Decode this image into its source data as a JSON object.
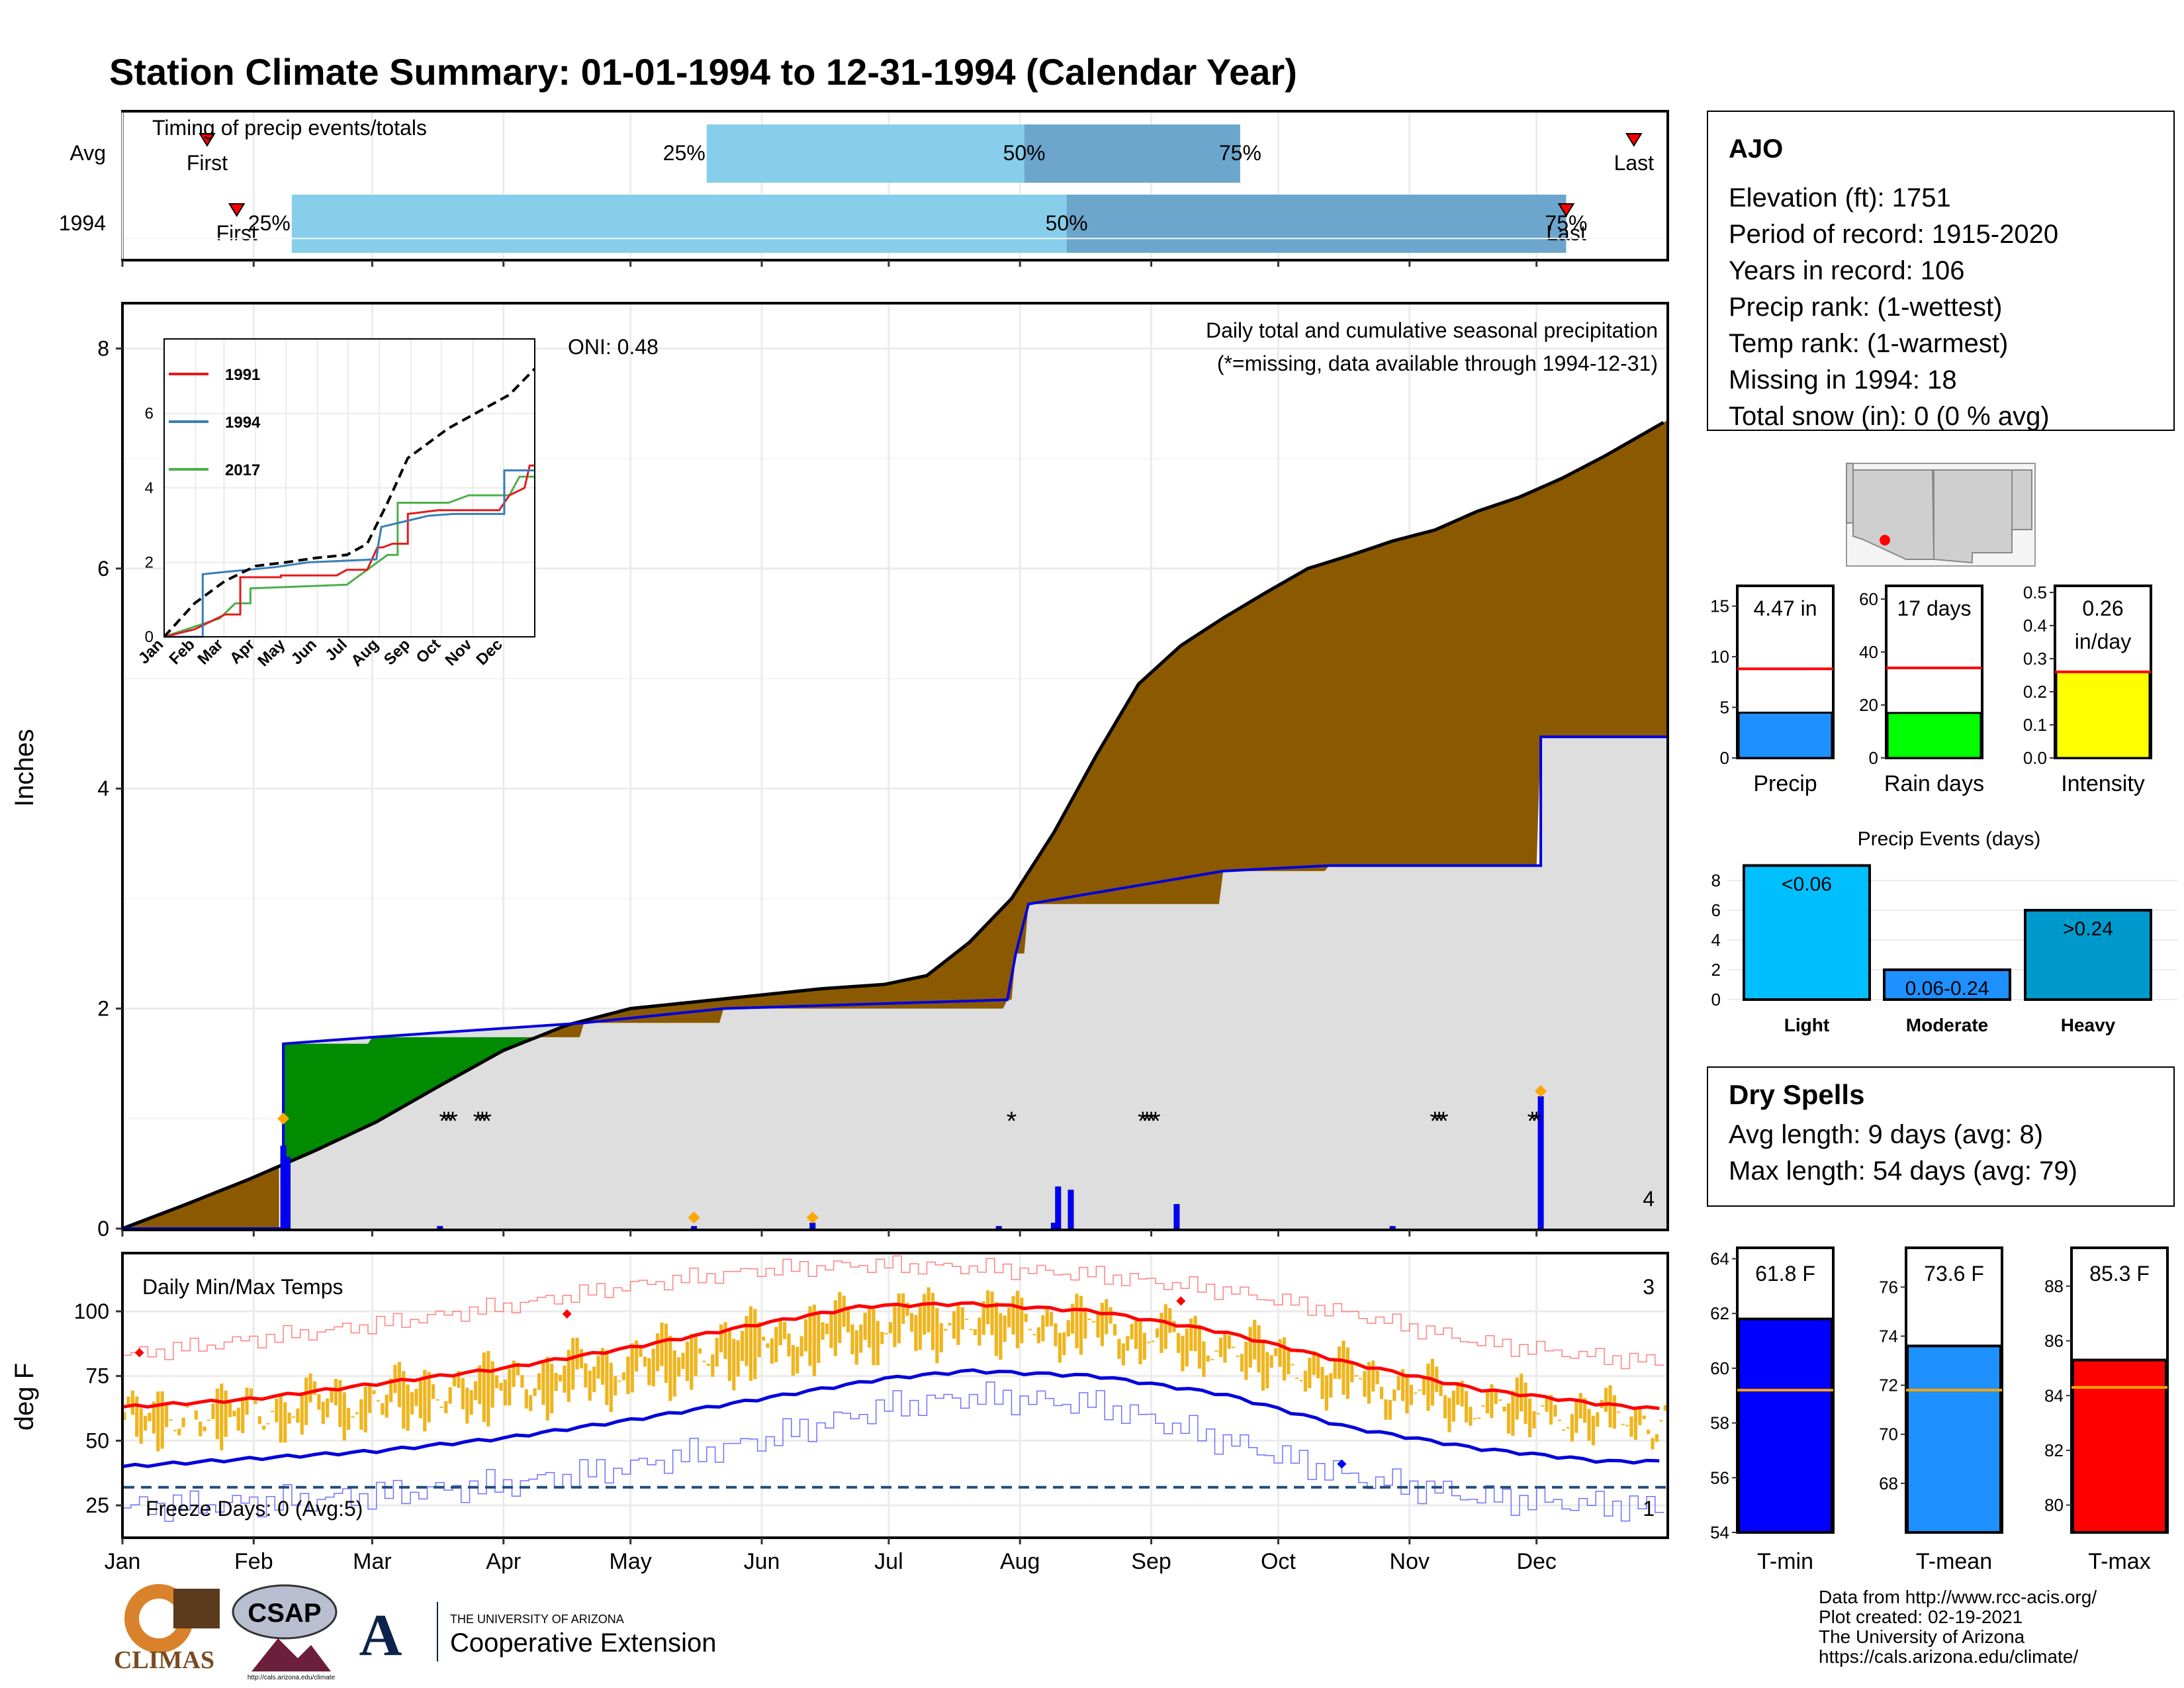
{
  "title": "Station Climate Summary: 01-01-1994 to 12-31-1994 (Calendar Year)",
  "months": [
    "Jan",
    "Feb",
    "Mar",
    "Apr",
    "May",
    "Jun",
    "Jul",
    "Aug",
    "Sep",
    "Oct",
    "Nov",
    "Dec"
  ],
  "timing": {
    "title": "Timing of precip events/totals",
    "rows": [
      {
        "label": "Avg",
        "first_day": 20,
        "last_day": 357,
        "p25_day": 138,
        "p50_day": 213,
        "p75_day": 264
      },
      {
        "label": "1994",
        "first_day": 27,
        "last_day": 341,
        "p25_day": 40,
        "p50_day": 223,
        "p75_day": 341
      }
    ],
    "first_label": "First",
    "last_label": "Last",
    "p25_label": "25%",
    "p50_label": "50%",
    "p75_label": "75%"
  },
  "precip": {
    "ylabel": "Inches",
    "note": "Daily total and cumulative seasonal precipitation",
    "missing_note": "(*=missing, data available through 1994-12-31)",
    "oni": "ONI: 0.48",
    "count": "4",
    "ylim": [
      0,
      8.4
    ],
    "yticks": [
      0,
      2,
      4,
      6,
      8
    ],
    "avg_cum": [
      [
        0,
        0
      ],
      [
        15,
        0.22
      ],
      [
        30,
        0.45
      ],
      [
        45,
        0.7
      ],
      [
        60,
        0.97
      ],
      [
        75,
        1.3
      ],
      [
        90,
        1.62
      ],
      [
        105,
        1.85
      ],
      [
        120,
        2.0
      ],
      [
        135,
        2.06
      ],
      [
        150,
        2.12
      ],
      [
        165,
        2.18
      ],
      [
        180,
        2.22
      ],
      [
        190,
        2.3
      ],
      [
        200,
        2.6
      ],
      [
        210,
        3.0
      ],
      [
        220,
        3.6
      ],
      [
        230,
        4.3
      ],
      [
        240,
        4.95
      ],
      [
        250,
        5.3
      ],
      [
        260,
        5.55
      ],
      [
        270,
        5.78
      ],
      [
        280,
        6.0
      ],
      [
        290,
        6.12
      ],
      [
        300,
        6.25
      ],
      [
        310,
        6.35
      ],
      [
        320,
        6.52
      ],
      [
        330,
        6.65
      ],
      [
        340,
        6.82
      ],
      [
        350,
        7.02
      ],
      [
        365,
        7.35
      ]
    ],
    "year_cum": [
      [
        0,
        0
      ],
      [
        38,
        0
      ],
      [
        38,
        1.68
      ],
      [
        59,
        1.74
      ],
      [
        109,
        1.87
      ],
      [
        142,
        2.0
      ],
      [
        209,
        2.08
      ],
      [
        211,
        2.5
      ],
      [
        214,
        2.95
      ],
      [
        260,
        3.25
      ],
      [
        285,
        3.3
      ],
      [
        335,
        3.3
      ],
      [
        335,
        4.47
      ],
      [
        365,
        4.47
      ]
    ],
    "daily": [
      [
        38,
        0.75
      ],
      [
        39,
        0.65
      ],
      [
        75,
        0.02
      ],
      [
        135,
        0.02
      ],
      [
        163,
        0.05
      ],
      [
        207,
        0.02
      ],
      [
        220,
        0.05
      ],
      [
        221,
        0.38
      ],
      [
        224,
        0.35
      ],
      [
        249,
        0.22
      ],
      [
        300,
        0.02
      ],
      [
        335,
        1.2
      ]
    ],
    "event_dots": [
      [
        38,
        1.0
      ],
      [
        135,
        0.1
      ],
      [
        163,
        0.1
      ],
      [
        335,
        1.25
      ]
    ],
    "missing_days": [
      76,
      77,
      78,
      84,
      85,
      86,
      210,
      241,
      242,
      243,
      244,
      310,
      311,
      312,
      333,
      334
    ]
  },
  "inset": {
    "ylim": [
      0,
      8
    ],
    "yticks": [
      0,
      2,
      4,
      6
    ],
    "legend": [
      {
        "name": "1991",
        "color": "#e41a1c"
      },
      {
        "name": "1994",
        "color": "#377eb8"
      },
      {
        "name": "2017",
        "color": "#4daf4a"
      }
    ],
    "avg": [
      [
        0,
        0
      ],
      [
        30,
        0.9
      ],
      [
        60,
        1.5
      ],
      [
        90,
        1.9
      ],
      [
        120,
        2.0
      ],
      [
        150,
        2.12
      ],
      [
        180,
        2.2
      ],
      [
        200,
        2.5
      ],
      [
        220,
        3.6
      ],
      [
        240,
        4.8
      ],
      [
        260,
        5.2
      ],
      [
        280,
        5.6
      ],
      [
        300,
        5.9
      ],
      [
        320,
        6.2
      ],
      [
        340,
        6.5
      ],
      [
        365,
        7.2
      ]
    ],
    "s1991": [
      [
        0,
        0
      ],
      [
        30,
        0.2
      ],
      [
        60,
        0.6
      ],
      [
        75,
        0.6
      ],
      [
        75,
        1.6
      ],
      [
        115,
        1.6
      ],
      [
        115,
        1.65
      ],
      [
        170,
        1.65
      ],
      [
        180,
        1.8
      ],
      [
        200,
        1.8
      ],
      [
        210,
        2.4
      ],
      [
        215,
        2.4
      ],
      [
        225,
        2.5
      ],
      [
        240,
        2.5
      ],
      [
        240,
        3.3
      ],
      [
        270,
        3.4
      ],
      [
        330,
        3.4
      ],
      [
        340,
        3.8
      ],
      [
        355,
        4.0
      ],
      [
        360,
        4.6
      ],
      [
        365,
        4.6
      ]
    ],
    "s1994": [
      [
        0,
        0
      ],
      [
        38,
        0
      ],
      [
        38,
        1.68
      ],
      [
        59,
        1.74
      ],
      [
        109,
        1.87
      ],
      [
        142,
        2.0
      ],
      [
        209,
        2.08
      ],
      [
        211,
        2.5
      ],
      [
        214,
        2.95
      ],
      [
        260,
        3.25
      ],
      [
        285,
        3.3
      ],
      [
        335,
        3.3
      ],
      [
        335,
        4.47
      ],
      [
        365,
        4.47
      ]
    ],
    "s2017": [
      [
        0,
        0
      ],
      [
        55,
        0.5
      ],
      [
        70,
        0.9
      ],
      [
        85,
        0.9
      ],
      [
        85,
        1.3
      ],
      [
        180,
        1.4
      ],
      [
        200,
        1.8
      ],
      [
        220,
        2.2
      ],
      [
        230,
        2.2
      ],
      [
        230,
        3.6
      ],
      [
        280,
        3.6
      ],
      [
        300,
        3.8
      ],
      [
        340,
        3.8
      ],
      [
        350,
        4.3
      ],
      [
        365,
        4.3
      ]
    ]
  },
  "temps": {
    "title": "Daily Min/Max Temps",
    "ylabel": "deg F",
    "freeze_note": "Freeze Days: 0 (Avg:5)",
    "count_top": "3",
    "count_bottom": "1",
    "ylim": [
      13,
      122
    ],
    "yticks": [
      25,
      50,
      75,
      100
    ],
    "freeze_line": 32,
    "avg_max": [
      [
        0,
        63
      ],
      [
        30,
        66
      ],
      [
        60,
        72
      ],
      [
        90,
        78
      ],
      [
        120,
        86
      ],
      [
        150,
        95
      ],
      [
        175,
        102
      ],
      [
        200,
        103
      ],
      [
        230,
        100
      ],
      [
        260,
        92
      ],
      [
        290,
        80
      ],
      [
        320,
        70
      ],
      [
        350,
        64
      ],
      [
        365,
        62
      ]
    ],
    "avg_min": [
      [
        0,
        40
      ],
      [
        30,
        43
      ],
      [
        60,
        46
      ],
      [
        90,
        51
      ],
      [
        120,
        58
      ],
      [
        150,
        66
      ],
      [
        180,
        74
      ],
      [
        200,
        77
      ],
      [
        230,
        75
      ],
      [
        260,
        68
      ],
      [
        290,
        55
      ],
      [
        320,
        47
      ],
      [
        350,
        42
      ],
      [
        365,
        42
      ]
    ],
    "rec_max": [
      [
        0,
        83
      ],
      [
        30,
        89
      ],
      [
        60,
        95
      ],
      [
        90,
        102
      ],
      [
        120,
        110
      ],
      [
        150,
        116
      ],
      [
        175,
        118
      ],
      [
        200,
        117
      ],
      [
        230,
        114
      ],
      [
        260,
        108
      ],
      [
        290,
        99
      ],
      [
        320,
        88
      ],
      [
        350,
        82
      ],
      [
        365,
        80
      ]
    ],
    "rec_min": [
      [
        0,
        24
      ],
      [
        30,
        26
      ],
      [
        60,
        29
      ],
      [
        90,
        33
      ],
      [
        120,
        40
      ],
      [
        150,
        50
      ],
      [
        180,
        63
      ],
      [
        200,
        67
      ],
      [
        230,
        64
      ],
      [
        260,
        50
      ],
      [
        290,
        36
      ],
      [
        320,
        28
      ],
      [
        350,
        25
      ],
      [
        365,
        24
      ]
    ],
    "bar_color": "#efb51e",
    "record_highs": [
      [
        4,
        84
      ],
      [
        105,
        99
      ],
      [
        250,
        104
      ]
    ],
    "record_lows": [
      [
        288,
        41
      ]
    ]
  },
  "station": {
    "name": "AJO",
    "lines": [
      "Elevation (ft): 1751",
      "Period of record: 1915-2020",
      "Years in record: 106",
      "Precip rank:  (1-wettest)",
      "Temp rank:  (1-warmest)",
      "Missing in 1994: 18",
      "Total snow (in): 0 (0 % avg)"
    ]
  },
  "mini_bars": [
    {
      "label": "Precip",
      "value": 4.47,
      "avg": 8.8,
      "display": "4.47 in",
      "ylim": [
        0,
        17
      ],
      "yticks": [
        0,
        5,
        10,
        15
      ],
      "color": "#1e90ff"
    },
    {
      "label": "Rain days",
      "value": 17,
      "avg": 34,
      "display": "17 days",
      "ylim": [
        0,
        65
      ],
      "yticks": [
        0,
        20,
        40,
        60
      ],
      "color": "#00ff00"
    },
    {
      "label": "Intensity",
      "value": 0.26,
      "avg": 0.26,
      "display": "0.26\nin/day",
      "ylim": [
        0,
        0.52
      ],
      "yticks": [
        0.0,
        0.1,
        0.2,
        0.3,
        0.4,
        0.5
      ],
      "color": "#ffff00"
    }
  ],
  "events": {
    "title": "Precip Events (days)",
    "categories": [
      "Light",
      "Moderate",
      "Heavy"
    ],
    "values": [
      9,
      2,
      6
    ],
    "labels": [
      "<0.06",
      "0.06-0.24",
      ">0.24"
    ],
    "colors": [
      "#00bfff",
      "#1e90ff",
      "#0099cc"
    ],
    "ylim": [
      0,
      9.2
    ],
    "yticks": [
      0,
      2,
      4,
      6,
      8
    ]
  },
  "dry_spells": {
    "title": "Dry Spells",
    "avg_length": "Avg length: 9 days (avg: 8)",
    "max_length": "Max length: 54 days (avg: 79)"
  },
  "temp_bars": [
    {
      "label": "T-min",
      "value": 61.8,
      "avg": 59.2,
      "display": "61.8 F",
      "ylim": [
        54,
        64.4
      ],
      "yticks": [
        54,
        56,
        58,
        60,
        62,
        64
      ],
      "color": "#0000ff"
    },
    {
      "label": "T-mean",
      "value": 73.6,
      "avg": 71.8,
      "display": "73.6 F",
      "ylim": [
        66,
        77.6
      ],
      "yticks": [
        68,
        70,
        72,
        74,
        76
      ],
      "color": "#1e90ff"
    },
    {
      "label": "T-max",
      "value": 85.3,
      "avg": 84.3,
      "display": "85.3 F",
      "ylim": [
        79,
        89.4
      ],
      "yticks": [
        80,
        82,
        84,
        86,
        88
      ],
      "color": "#ff0000"
    }
  ],
  "footer": {
    "lines": [
      "Data from http://www.rcc-acis.org/",
      "Plot created: 02-19-2021",
      "The University of Arizona",
      "https://cals.arizona.edu/climate/"
    ],
    "climas": "CLIMAS",
    "csap": "CSAP",
    "csap_url": "http://cals.arizona.edu/climate",
    "ua_line1": "THE UNIVERSITY OF ARIZONA",
    "ua_line2": "Cooperative Extension"
  }
}
